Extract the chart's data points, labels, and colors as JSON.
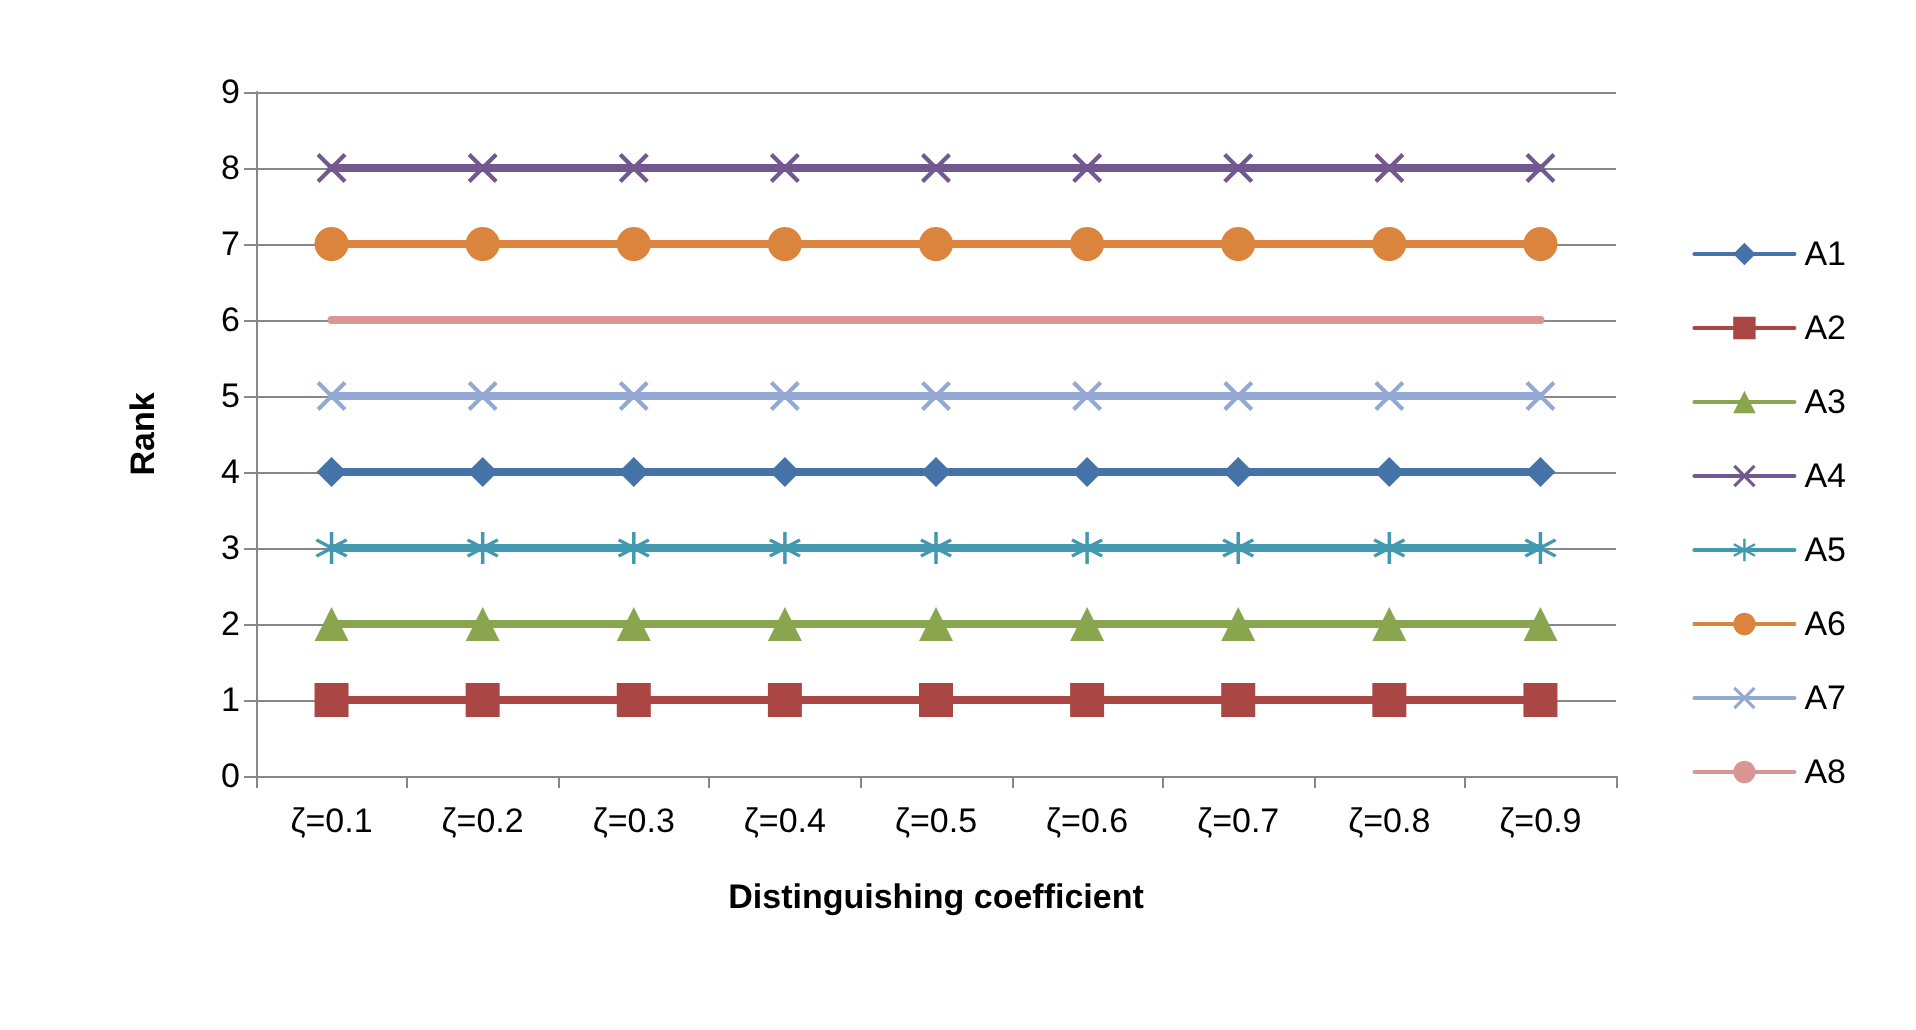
{
  "chart_data": {
    "type": "line",
    "xlabel": "Distinguishing coefficient",
    "ylabel": "Rank",
    "categories": [
      "ζ=0.1",
      "ζ=0.2",
      "ζ=0.3",
      "ζ=0.4",
      "ζ=0.5",
      "ζ=0.6",
      "ζ=0.7",
      "ζ=0.8",
      "ζ=0.9"
    ],
    "series": [
      {
        "name": "A1",
        "color": "#4572a7",
        "marker": "diamond",
        "values": [
          4,
          4,
          4,
          4,
          4,
          4,
          4,
          4,
          4
        ]
      },
      {
        "name": "A2",
        "color": "#aa4643",
        "marker": "square",
        "values": [
          1,
          1,
          1,
          1,
          1,
          1,
          1,
          1,
          1
        ]
      },
      {
        "name": "A3",
        "color": "#89a54e",
        "marker": "triangle",
        "values": [
          2,
          2,
          2,
          2,
          2,
          2,
          2,
          2,
          2
        ]
      },
      {
        "name": "A4",
        "color": "#71588f",
        "marker": "cross",
        "values": [
          8,
          8,
          8,
          8,
          8,
          8,
          8,
          8,
          8
        ]
      },
      {
        "name": "A5",
        "color": "#4198af",
        "marker": "star",
        "values": [
          3,
          3,
          3,
          3,
          3,
          3,
          3,
          3,
          3
        ]
      },
      {
        "name": "A6",
        "color": "#db843d",
        "marker": "circle",
        "values": [
          7,
          7,
          7,
          7,
          7,
          7,
          7,
          7,
          7
        ]
      },
      {
        "name": "A7",
        "color": "#93a9d4",
        "marker": "cross",
        "values": [
          5,
          5,
          5,
          5,
          5,
          5,
          5,
          5,
          5
        ]
      },
      {
        "name": "A8",
        "color": "#d99694",
        "marker": "none",
        "values": [
          6,
          6,
          6,
          6,
          6,
          6,
          6,
          6,
          6
        ]
      }
    ],
    "ylim": [
      0,
      9
    ],
    "yticks": [
      0,
      1,
      2,
      3,
      4,
      5,
      6,
      7,
      8,
      9
    ],
    "grid": "y",
    "legend": "right",
    "line_style": "solid"
  }
}
